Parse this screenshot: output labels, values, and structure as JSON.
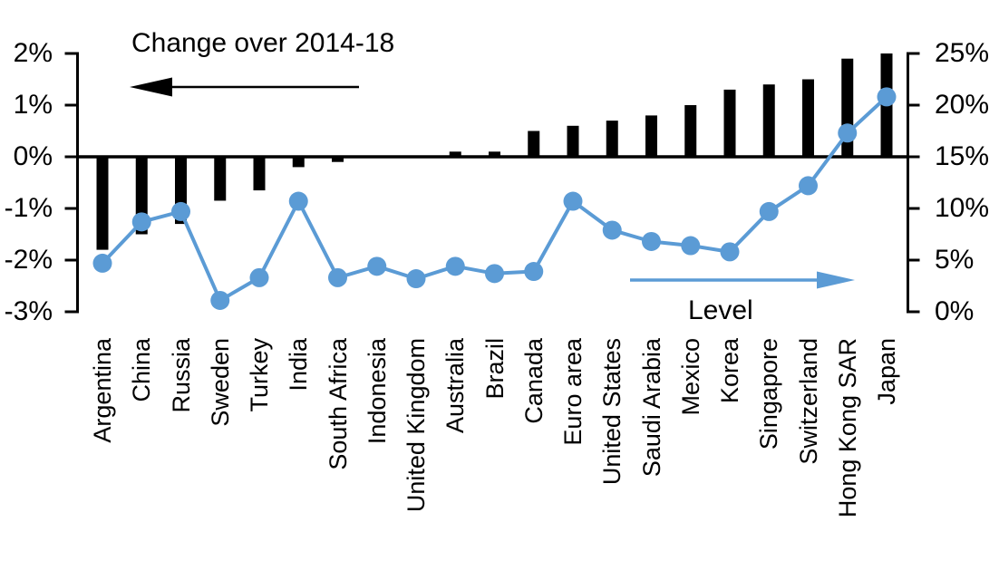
{
  "chart_data": {
    "type": "combo-bar-line",
    "categories": [
      "Argentina",
      "China",
      "Russia",
      "Sweden",
      "Turkey",
      "India",
      "South Africa",
      "Indonesia",
      "United Kingdom",
      "Australia",
      "Brazil",
      "Canada",
      "Euro area",
      "United States",
      "Saudi Arabia",
      "Mexico",
      "Korea",
      "Singapore",
      "Switzerland",
      "Hong Kong SAR",
      "Japan"
    ],
    "series": [
      {
        "name": "Change over 2014-18",
        "type": "bar",
        "axis": "left",
        "color": "#000000",
        "values": [
          -1.8,
          -1.5,
          -1.3,
          -0.85,
          -0.65,
          -0.2,
          -0.1,
          0,
          0,
          0.1,
          0.1,
          0.5,
          0.6,
          0.7,
          0.8,
          1.0,
          1.3,
          1.4,
          1.5,
          1.9,
          2.0
        ]
      },
      {
        "name": "Level",
        "type": "line",
        "axis": "right",
        "color": "#5B9BD5",
        "values": [
          4.7,
          8.7,
          9.7,
          1.1,
          3.3,
          10.7,
          3.3,
          4.4,
          3.2,
          4.4,
          3.7,
          3.9,
          10.7,
          7.9,
          6.8,
          6.4,
          5.8,
          9.7,
          12.2,
          17.3,
          20.8
        ]
      }
    ],
    "left_axis": {
      "min": -3,
      "max": 2,
      "tick_labels": [
        "2%",
        "1%",
        "0%",
        "-1%",
        "-2%",
        "-3%"
      ],
      "tick_values": [
        2,
        1,
        0,
        -1,
        -2,
        -3
      ]
    },
    "right_axis": {
      "min": 0,
      "max": 25,
      "tick_labels": [
        "25%",
        "20%",
        "15%",
        "10%",
        "5%",
        "0%"
      ],
      "tick_values": [
        25,
        20,
        15,
        10,
        5,
        0
      ]
    },
    "annotations": {
      "change_label": "Change over 2014-18",
      "level_label": "Level"
    },
    "grid": false,
    "legend_position": "none"
  },
  "colors": {
    "bar": "#000000",
    "line": "#5B9BD5",
    "axis": "#000000",
    "background": "#FFFFFF"
  }
}
